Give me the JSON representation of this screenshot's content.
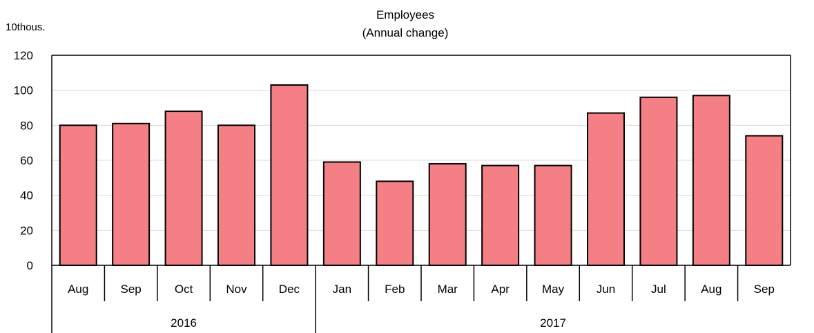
{
  "chart_data": {
    "type": "bar",
    "title": "Employees",
    "subtitle": "(Annual change)",
    "ylabel": "10thous.",
    "xlabel": "",
    "ylim": [
      0,
      120
    ],
    "yticks": [
      0,
      20,
      40,
      60,
      80,
      100,
      120
    ],
    "grid": true,
    "categories": [
      "Aug",
      "Sep",
      "Oct",
      "Nov",
      "Dec",
      "Jan",
      "Feb",
      "Mar",
      "Apr",
      "May",
      "Jun",
      "Jul",
      "Aug",
      "Sep"
    ],
    "groups": [
      {
        "label": "2016",
        "count": 5
      },
      {
        "label": "2017",
        "count": 9
      }
    ],
    "series": [
      {
        "values": [
          80,
          81,
          88,
          80,
          103,
          59,
          48,
          58,
          57,
          57,
          87,
          96,
          97,
          74
        ]
      }
    ],
    "colors": {
      "bar": "#f47f85",
      "bar_edge": "#000000",
      "grid": "#d9d9d9"
    }
  }
}
